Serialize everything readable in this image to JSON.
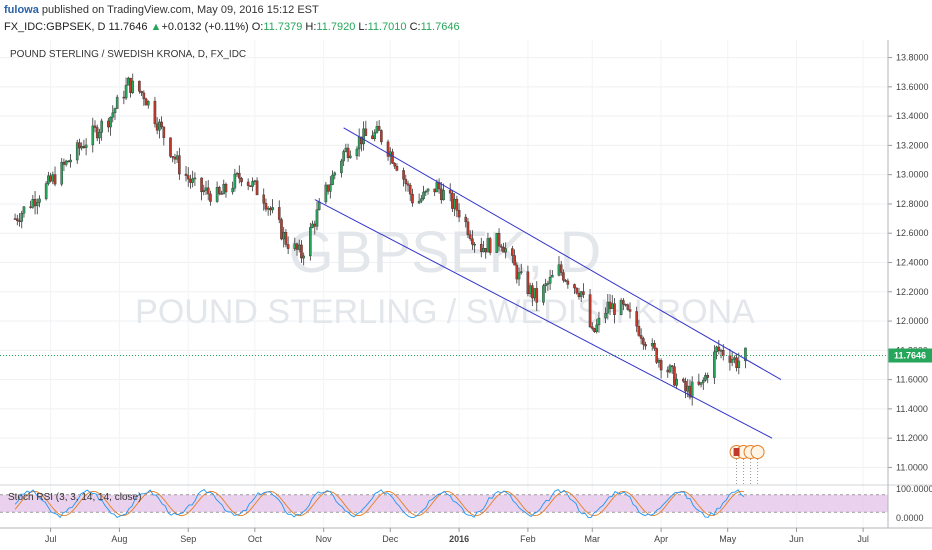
{
  "header": {
    "author": "fulowa",
    "published_text": "published on TradingView.com, May 09, 2016 15:12 EST",
    "symbol_line": "FX_IDC:GBPSEK, D 11.7646",
    "change_arrow": "▲",
    "change": "+0.0132 (+0.11%)",
    "open_label": "O:",
    "open": "11.7379",
    "high_label": "H:",
    "high": "11.7920",
    "low_label": "L:",
    "low": "11.7010",
    "close_label": "C:",
    "close": "11.7646"
  },
  "chart": {
    "legend_title": "POUND STERLING / SWEDISH KRONA, D, FX_IDC",
    "watermark_symbol": "GBPSEK, D",
    "watermark_name": "POUND STERLING / SWEDISH KRONA",
    "last_price_label": "11.7646",
    "indicator_label": "Stoch RSI (3, 3, 14, 14, close)",
    "indicator_ticks": [
      "100.0000",
      "0.0000"
    ],
    "colors": {
      "up": "#26a65b",
      "down": "#c0392b",
      "channel": "#3333cc",
      "stoch_k": "#2196f3",
      "stoch_d": "#e67e22",
      "stoch_band": "#e1bee7"
    }
  },
  "chart_data": {
    "type": "candlestick",
    "title": "POUND STERLING / SWEDISH KRONA, D, FX_IDC",
    "y_ticks": [
      13.8,
      13.6,
      13.4,
      13.2,
      13.0,
      12.8,
      12.6,
      12.4,
      12.2,
      12.0,
      11.8,
      11.6,
      11.4,
      11.2,
      11.0
    ],
    "ylim": [
      10.88,
      13.92
    ],
    "x_ticks": [
      "Jul",
      "Aug",
      "Sep",
      "Oct",
      "Nov",
      "Dec",
      "2016",
      "Feb",
      "Mar",
      "Apr",
      "May",
      "Jun",
      "Jul"
    ],
    "last_close": 11.7646,
    "price_path": [
      [
        "2015-06-15",
        12.7
      ],
      [
        "2015-07-01",
        12.95
      ],
      [
        "2015-07-15",
        13.2
      ],
      [
        "2015-07-28",
        13.4
      ],
      [
        "2015-08-05",
        13.62
      ],
      [
        "2015-08-12",
        13.55
      ],
      [
        "2015-08-20",
        13.3
      ],
      [
        "2015-08-28",
        13.05
      ],
      [
        "2015-09-05",
        12.9
      ],
      [
        "2015-09-15",
        12.85
      ],
      [
        "2015-09-25",
        13.0
      ],
      [
        "2015-10-05",
        12.85
      ],
      [
        "2015-10-15",
        12.55
      ],
      [
        "2015-10-22",
        12.45
      ],
      [
        "2015-11-01",
        12.85
      ],
      [
        "2015-11-10",
        13.15
      ],
      [
        "2015-11-18",
        13.25
      ],
      [
        "2015-11-26",
        13.28
      ],
      [
        "2015-12-05",
        13.05
      ],
      [
        "2015-12-12",
        12.8
      ],
      [
        "2015-12-22",
        12.92
      ],
      [
        "2016-01-01",
        12.75
      ],
      [
        "2016-01-10",
        12.5
      ],
      [
        "2016-01-20",
        12.55
      ],
      [
        "2016-01-28",
        12.3
      ],
      [
        "2016-02-05",
        12.15
      ],
      [
        "2016-02-15",
        12.35
      ],
      [
        "2016-02-25",
        12.2
      ],
      [
        "2016-03-01",
        11.9
      ],
      [
        "2016-03-08",
        12.1
      ],
      [
        "2016-03-15",
        12.08
      ],
      [
        "2016-03-22",
        11.95
      ],
      [
        "2016-03-28",
        11.8
      ],
      [
        "2016-04-05",
        11.65
      ],
      [
        "2016-04-12",
        11.52
      ],
      [
        "2016-04-19",
        11.55
      ],
      [
        "2016-04-26",
        11.8
      ],
      [
        "2016-05-01",
        11.78
      ],
      [
        "2016-05-05",
        11.72
      ],
      [
        "2016-05-09",
        11.7646
      ]
    ],
    "channel_upper": [
      [
        "2015-11-10",
        13.32
      ],
      [
        "2016-05-25",
        11.6
      ]
    ],
    "channel_lower": [
      [
        "2015-10-28",
        12.83
      ],
      [
        "2016-05-21",
        11.2
      ]
    ],
    "stoch_rsi_ylim": [
      0,
      100
    ]
  }
}
